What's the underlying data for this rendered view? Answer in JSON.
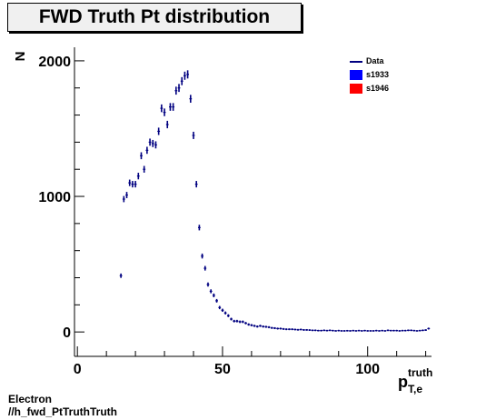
{
  "title": "FWD Truth Pt distribution",
  "footer": {
    "line1": "Electron",
    "line2": "//h_fwd_PtTruthTruth"
  },
  "legend": {
    "entries": [
      {
        "label": "Data",
        "style": "line",
        "color": "#000080"
      },
      {
        "label": "s1933",
        "style": "box",
        "color": "#0000ff"
      },
      {
        "label": "s1946",
        "style": "box",
        "color": "#ff0000"
      }
    ]
  },
  "chart_data": {
    "type": "scatter",
    "title": "FWD Truth Pt distribution",
    "xlabel_main": "p",
    "xlabel_sup": "truth",
    "xlabel_sub": "T,e",
    "ylabel": "N",
    "xlim": [
      -1,
      122
    ],
    "ylim": [
      -180,
      2100
    ],
    "x_ticks": [
      0,
      50,
      100
    ],
    "y_ticks": [
      0,
      1000,
      2000
    ],
    "series": [
      {
        "name": "Data",
        "color": "#000080",
        "x": [
          15,
          16,
          17,
          18,
          19,
          20,
          21,
          22,
          23,
          24,
          25,
          26,
          27,
          28,
          29,
          30,
          31,
          32,
          33,
          34,
          35,
          36,
          37,
          38,
          39,
          40,
          41,
          42,
          43,
          44,
          45,
          46,
          47,
          48,
          49,
          50,
          51,
          52,
          53,
          54,
          55,
          56,
          57,
          58,
          59,
          60,
          61,
          62,
          63,
          64,
          65,
          66,
          67,
          68,
          69,
          70,
          71,
          72,
          73,
          74,
          75,
          76,
          77,
          78,
          79,
          80,
          81,
          82,
          83,
          84,
          85,
          86,
          87,
          88,
          89,
          90,
          91,
          92,
          93,
          94,
          95,
          96,
          97,
          98,
          99,
          100,
          101,
          102,
          103,
          104,
          105,
          106,
          107,
          108,
          109,
          110,
          111,
          112,
          113,
          114,
          115,
          116,
          117,
          118,
          119,
          120,
          121
        ],
        "y": [
          415,
          980,
          1010,
          1100,
          1090,
          1090,
          1150,
          1300,
          1200,
          1340,
          1400,
          1390,
          1380,
          1480,
          1650,
          1620,
          1530,
          1660,
          1660,
          1780,
          1800,
          1850,
          1890,
          1900,
          1720,
          1450,
          1090,
          770,
          560,
          470,
          350,
          300,
          270,
          230,
          180,
          160,
          140,
          120,
          95,
          80,
          80,
          75,
          75,
          65,
          55,
          50,
          45,
          40,
          45,
          40,
          38,
          35,
          30,
          28,
          25,
          25,
          22,
          20,
          20,
          20,
          18,
          16,
          18,
          15,
          15,
          14,
          12,
          12,
          10,
          10,
          12,
          10,
          12,
          10,
          8,
          10,
          8,
          8,
          9,
          8,
          10,
          8,
          10,
          8,
          10,
          8,
          8,
          8,
          10,
          8,
          10,
          8,
          12,
          10,
          10,
          10,
          8,
          10,
          10,
          12,
          12,
          10,
          8,
          10,
          12,
          14,
          25
        ]
      }
    ]
  }
}
